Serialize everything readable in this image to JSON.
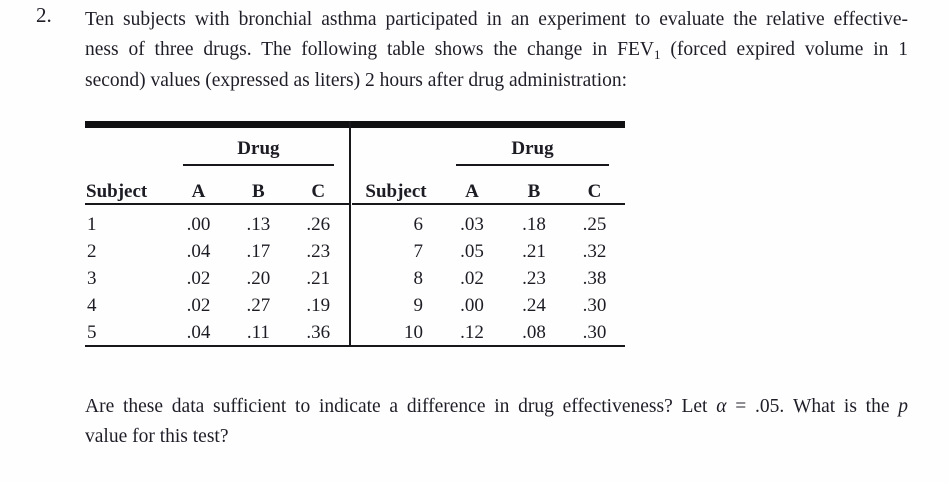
{
  "problem_number": "2.",
  "intro": {
    "line1": "Ten subjects with bronchial asthma participated in an experiment to evaluate the relative effective-",
    "line2_pre": "ness of three drugs. The following table shows the change in FEV",
    "line2_sub": "1",
    "line2_post": " (forced expired volume in 1",
    "line3": "second) values (expressed as liters) 2 hours after drug administration:"
  },
  "table": {
    "left": {
      "group_header": "Drug",
      "columns": [
        "Subject",
        "A",
        "B",
        "C"
      ],
      "rows": [
        {
          "s": "1",
          "a": ".00",
          "b": ".13",
          "c": ".26"
        },
        {
          "s": "2",
          "a": ".04",
          "b": ".17",
          "c": ".23"
        },
        {
          "s": "3",
          "a": ".02",
          "b": ".20",
          "c": ".21"
        },
        {
          "s": "4",
          "a": ".02",
          "b": ".27",
          "c": ".19"
        },
        {
          "s": "5",
          "a": ".04",
          "b": ".11",
          "c": ".36"
        }
      ]
    },
    "right": {
      "group_header": "Drug",
      "columns": [
        "Subject",
        "A",
        "B",
        "C"
      ],
      "rows": [
        {
          "s": "6",
          "a": ".03",
          "b": ".18",
          "c": ".25"
        },
        {
          "s": "7",
          "a": ".05",
          "b": ".21",
          "c": ".32"
        },
        {
          "s": "8",
          "a": ".02",
          "b": ".23",
          "c": ".38"
        },
        {
          "s": "9",
          "a": ".00",
          "b": ".24",
          "c": ".30"
        },
        {
          "s": "10",
          "a": ".12",
          "b": ".08",
          "c": ".30"
        }
      ]
    }
  },
  "question": {
    "line1_pre": "Are these data sufficient to indicate a difference in drug effectiveness? Let ",
    "alpha": "α",
    "line1_mid": " = .05. What is the ",
    "p_symbol": "p",
    "line2": "value for this test?"
  },
  "colors": {
    "text": "#1e1e28",
    "rule": "#18181c",
    "background": "#fefefe"
  }
}
